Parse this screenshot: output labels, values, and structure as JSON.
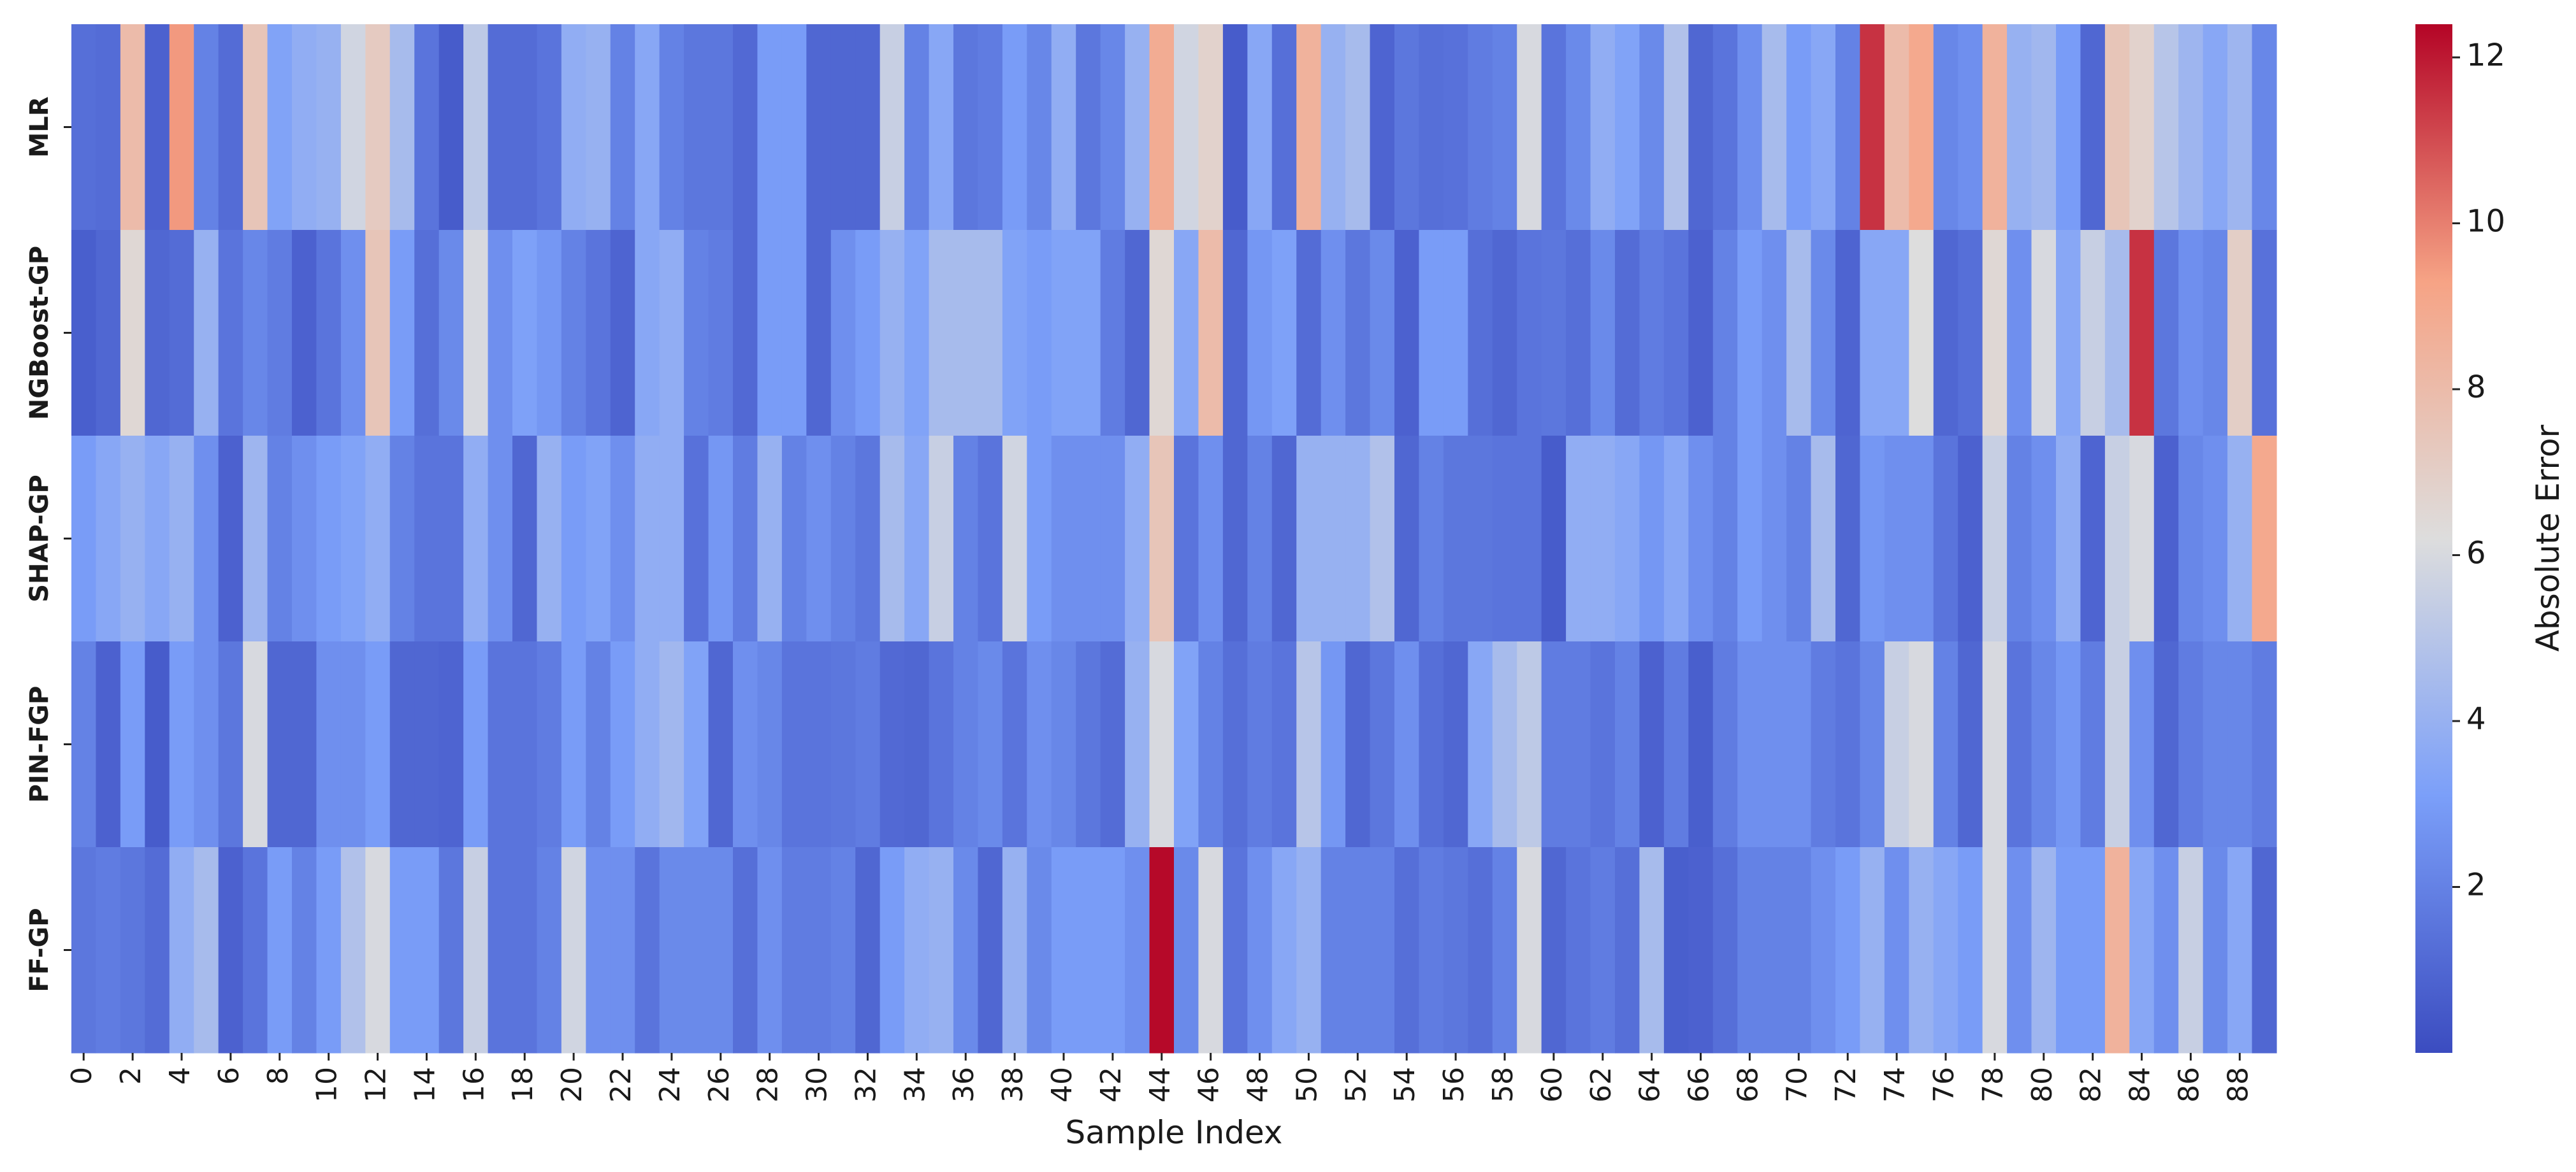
{
  "chart_data": {
    "type": "heatmap",
    "title": "",
    "xlabel": "Sample Index",
    "ylabel": "",
    "rows": [
      "MLR",
      "NGBoost-GP",
      "SHAP-GP",
      "PIN-FGP",
      "FF-GP"
    ],
    "x_tick_labels": [
      "0",
      "2",
      "4",
      "6",
      "8",
      "10",
      "12",
      "14",
      "16",
      "18",
      "20",
      "22",
      "24",
      "26",
      "28",
      "30",
      "32",
      "34",
      "36",
      "38",
      "40",
      "42",
      "44",
      "46",
      "48",
      "50",
      "52",
      "54",
      "56",
      "58",
      "60",
      "62",
      "64",
      "66",
      "68",
      "70",
      "72",
      "74",
      "76",
      "78",
      "80",
      "82",
      "84",
      "86",
      "88"
    ],
    "columns": 90,
    "values": [
      [
        1.3,
        1.2,
        8.0,
        0.8,
        9.5,
        2.0,
        1.2,
        7.5,
        3.3,
        3.8,
        4.0,
        5.8,
        7.2,
        4.5,
        1.5,
        0.6,
        5.2,
        1.2,
        1.2,
        1.5,
        3.8,
        4.0,
        2.0,
        3.5,
        2.0,
        1.6,
        1.6,
        1.1,
        3.0,
        3.0,
        1.0,
        1.0,
        1.0,
        5.5,
        2.0,
        3.5,
        1.6,
        1.8,
        3.0,
        2.2,
        3.8,
        1.6,
        2.2,
        4.0,
        8.8,
        5.8,
        6.8,
        0.6,
        3.5,
        1.3,
        8.5,
        4.0,
        4.5,
        0.9,
        1.6,
        1.3,
        1.4,
        1.8,
        2.0,
        6.0,
        1.5,
        2.3,
        3.8,
        3.3,
        2.3,
        4.8,
        1.0,
        1.5,
        2.5,
        4.5,
        3.0,
        3.5,
        2.0,
        11.5,
        8.0,
        9.0,
        2.2,
        2.5,
        8.5,
        4.0,
        4.3,
        3.0,
        1.0,
        7.5,
        6.8,
        5.0,
        4.2,
        3.5,
        4.2,
        2.2
      ],
      [
        0.7,
        1.0,
        6.5,
        1.0,
        1.2,
        4.0,
        1.5,
        2.2,
        1.8,
        0.8,
        1.5,
        2.5,
        7.5,
        3.0,
        1.3,
        2.3,
        6.0,
        2.5,
        3.2,
        2.8,
        2.0,
        1.5,
        0.9,
        3.5,
        3.8,
        2.0,
        1.8,
        1.1,
        3.0,
        3.0,
        1.0,
        2.5,
        3.0,
        4.0,
        3.3,
        4.5,
        4.5,
        4.5,
        3.3,
        3.0,
        3.3,
        3.3,
        1.8,
        1.0,
        6.5,
        3.5,
        8.0,
        1.0,
        2.8,
        3.2,
        1.2,
        2.5,
        1.6,
        2.3,
        0.8,
        3.0,
        3.0,
        1.3,
        1.0,
        1.5,
        1.6,
        1.3,
        2.3,
        1.2,
        1.8,
        1.5,
        0.8,
        2.0,
        3.0,
        2.5,
        4.5,
        2.3,
        0.9,
        3.5,
        3.5,
        6.2,
        1.0,
        1.3,
        6.5,
        2.5,
        6.0,
        3.5,
        5.5,
        4.5,
        11.5,
        1.6,
        2.5,
        2.2,
        7.0,
        1.4
      ],
      [
        3.0,
        3.5,
        4.0,
        3.5,
        4.0,
        2.5,
        0.8,
        4.2,
        2.0,
        2.5,
        3.0,
        3.3,
        3.8,
        2.0,
        1.5,
        1.5,
        3.8,
        2.5,
        1.0,
        4.0,
        3.0,
        3.3,
        2.5,
        3.8,
        3.8,
        1.4,
        2.8,
        1.8,
        4.0,
        2.0,
        2.5,
        2.0,
        1.6,
        4.5,
        3.5,
        5.5,
        2.0,
        1.5,
        5.8,
        3.0,
        2.5,
        2.5,
        2.5,
        3.8,
        7.5,
        1.5,
        2.5,
        1.0,
        2.0,
        1.0,
        4.0,
        4.0,
        4.0,
        4.8,
        1.0,
        2.0,
        1.6,
        1.6,
        1.5,
        1.5,
        0.6,
        3.8,
        3.8,
        3.5,
        2.8,
        3.5,
        2.5,
        2.0,
        3.0,
        2.5,
        2.0,
        4.5,
        1.0,
        2.8,
        2.5,
        2.5,
        1.5,
        0.8,
        5.5,
        2.0,
        2.5,
        3.8,
        0.9,
        5.5,
        6.0,
        0.8,
        2.2,
        2.5,
        4.0,
        9.0
      ],
      [
        2.0,
        0.8,
        3.0,
        0.6,
        3.0,
        2.5,
        1.6,
        6.0,
        1.0,
        1.0,
        2.5,
        2.5,
        3.0,
        1.0,
        1.0,
        0.9,
        3.0,
        1.5,
        1.5,
        1.8,
        3.0,
        2.0,
        3.0,
        3.8,
        4.3,
        3.3,
        1.0,
        2.5,
        2.2,
        1.5,
        1.5,
        1.6,
        1.8,
        1.1,
        1.0,
        1.5,
        2.0,
        2.3,
        1.5,
        2.5,
        2.2,
        1.6,
        1.2,
        4.0,
        6.0,
        3.3,
        2.0,
        1.3,
        1.8,
        1.5,
        5.0,
        2.8,
        1.0,
        1.6,
        2.5,
        1.3,
        1.0,
        3.5,
        4.5,
        5.2,
        1.8,
        1.8,
        1.5,
        2.0,
        0.8,
        1.8,
        0.7,
        1.8,
        2.5,
        2.5,
        2.5,
        1.8,
        1.5,
        2.2,
        5.5,
        6.0,
        2.0,
        1.0,
        6.0,
        1.5,
        2.2,
        2.8,
        1.8,
        5.5,
        2.5,
        1.0,
        1.8,
        2.2,
        2.2,
        1.8
      ],
      [
        1.6,
        1.8,
        1.6,
        1.2,
        3.8,
        4.5,
        0.8,
        1.5,
        3.0,
        2.0,
        3.0,
        4.8,
        6.0,
        3.0,
        3.0,
        1.6,
        5.5,
        1.5,
        1.5,
        2.0,
        5.8,
        2.5,
        2.5,
        1.5,
        2.3,
        2.3,
        2.3,
        1.3,
        2.5,
        1.8,
        1.8,
        2.0,
        1.0,
        3.0,
        3.8,
        4.0,
        2.3,
        1.0,
        4.0,
        2.3,
        3.0,
        3.0,
        3.0,
        2.5,
        12.3,
        2.3,
        6.0,
        1.5,
        2.5,
        3.5,
        4.0,
        2.0,
        2.0,
        2.0,
        1.3,
        1.8,
        1.6,
        1.3,
        2.0,
        6.0,
        1.0,
        1.5,
        1.8,
        1.3,
        4.5,
        0.7,
        0.8,
        1.3,
        2.0,
        2.0,
        2.0,
        2.5,
        3.0,
        4.0,
        2.5,
        4.0,
        3.5,
        3.0,
        6.0,
        2.5,
        4.2,
        3.0,
        3.0,
        8.5,
        3.5,
        2.5,
        5.5,
        2.3,
        3.5,
        1.0
      ]
    ],
    "colorbar": {
      "label": "Absolute Error",
      "min": 0.0,
      "max": 12.4,
      "ticks": [
        2,
        4,
        6,
        8,
        10,
        12
      ],
      "colormap": "coolwarm"
    }
  }
}
